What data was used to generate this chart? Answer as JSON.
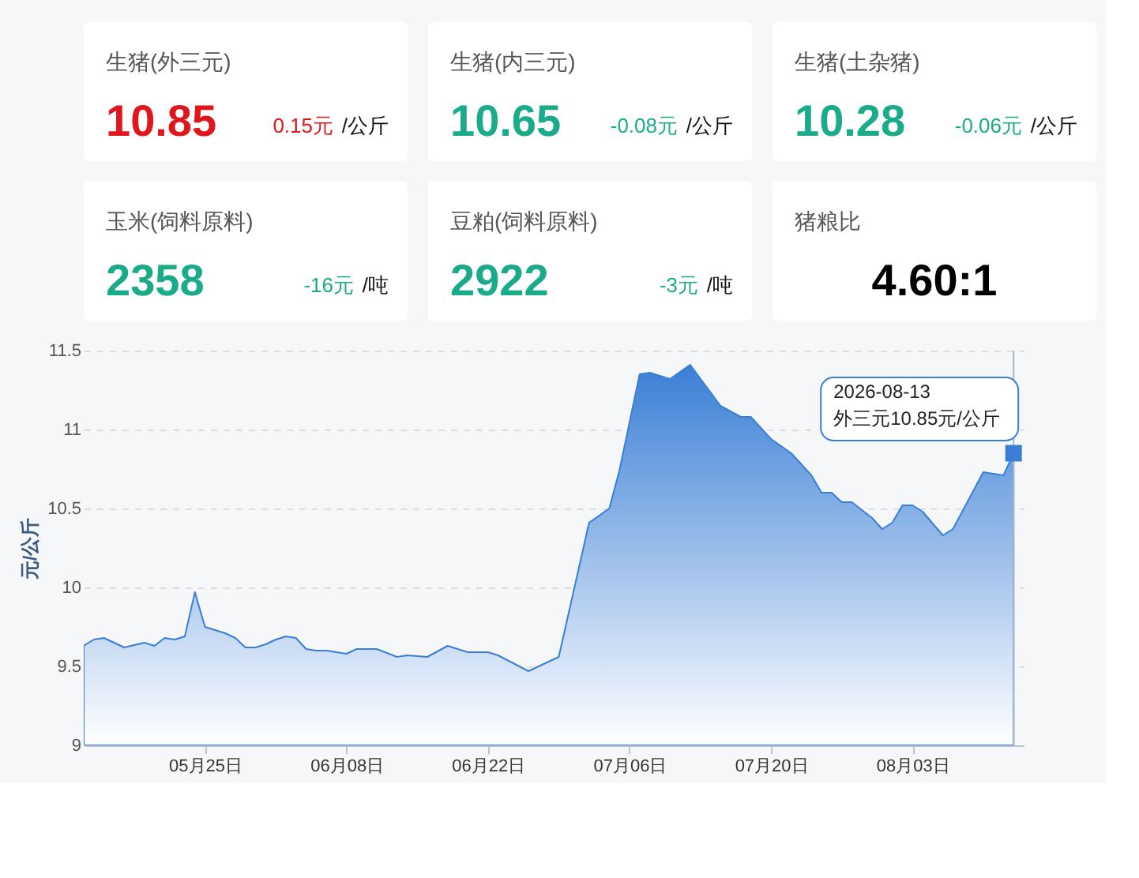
{
  "chart_data": [
    {
      "type": "other",
      "title": "生猪(外三元)",
      "annotations": [
        "10.85",
        "0.15元",
        "/公斤"
      ],
      "color": "#e0161c"
    },
    {
      "type": "other",
      "title": "生猪(内三元)",
      "annotations": [
        "10.65",
        "-0.08元",
        "/公斤"
      ],
      "color": "#1aab8a"
    },
    {
      "type": "other",
      "title": "生猪(土杂猪)",
      "annotations": [
        "10.28",
        "-0.06元",
        "/公斤"
      ],
      "color": "#1aab8a"
    },
    {
      "type": "other",
      "title": "玉米(饲料原料)",
      "annotations": [
        "2358",
        "-16元",
        "/吨"
      ],
      "color": "#1aab8a"
    },
    {
      "type": "other",
      "title": "豆粕(饲料原料)",
      "annotations": [
        "2922",
        "-3元",
        "/吨"
      ],
      "color": "#1aab8a"
    },
    {
      "type": "other",
      "title": "猪粮比",
      "annotations": [
        "4.60:1"
      ],
      "color": "#000000"
    },
    {
      "type": "area",
      "ylabel": "元/公斤",
      "x": [
        "2026-05-13",
        "2026-05-14",
        "2026-05-15",
        "2026-05-17",
        "2026-05-19",
        "2026-05-20",
        "2026-05-21",
        "2026-05-22",
        "2026-05-23",
        "2026-05-24",
        "2026-05-25",
        "2026-05-27",
        "2026-05-28",
        "2026-05-29",
        "2026-05-30",
        "2026-05-31",
        "2026-06-01",
        "2026-06-02",
        "2026-06-03",
        "2026-06-04",
        "2026-06-05",
        "2026-06-06",
        "2026-06-08",
        "2026-06-09",
        "2026-06-11",
        "2026-06-13",
        "2026-06-14",
        "2026-06-16",
        "2026-06-18",
        "2026-06-19",
        "2026-06-20",
        "2026-06-22",
        "2026-06-23",
        "2026-06-26",
        "2026-06-29",
        "2026-07-02",
        "2026-07-04",
        "2026-07-05",
        "2026-07-07",
        "2026-07-08",
        "2026-07-10",
        "2026-07-12",
        "2026-07-15",
        "2026-07-17",
        "2026-07-18",
        "2026-07-20",
        "2026-07-22",
        "2026-07-24",
        "2026-07-25",
        "2026-07-26",
        "2026-07-27",
        "2026-07-28",
        "2026-07-30",
        "2026-07-31",
        "2026-08-01",
        "2026-08-02",
        "2026-08-03",
        "2026-08-04",
        "2026-08-06",
        "2026-08-07",
        "2026-08-09",
        "2026-08-10",
        "2026-08-12",
        "2026-08-13"
      ],
      "series": [
        {
          "color": "#3a7fd5",
          "values": [
            9.63,
            9.67,
            9.68,
            9.62,
            9.65,
            9.63,
            9.68,
            9.67,
            9.69,
            9.97,
            9.75,
            9.71,
            9.68,
            9.62,
            9.62,
            9.64,
            9.67,
            9.69,
            9.68,
            9.61,
            9.6,
            9.6,
            9.58,
            9.61,
            9.61,
            9.56,
            9.57,
            9.56,
            9.63,
            9.61,
            9.59,
            9.59,
            9.57,
            9.47,
            9.56,
            10.41,
            10.5,
            10.74,
            11.35,
            11.36,
            11.32,
            11.41,
            11.15,
            11.08,
            11.08,
            10.94,
            10.85,
            10.71,
            10.6,
            10.6,
            10.54,
            10.54,
            10.44,
            10.37,
            10.41,
            10.52,
            10.52,
            10.48,
            10.33,
            10.37,
            10.61,
            10.73,
            10.71,
            10.85
          ]
        }
      ],
      "xlim": [
        "2026-05-13",
        "2026-08-14"
      ],
      "xticks": [
        {
          "value": "2026-05-25",
          "label": "05月25日"
        },
        {
          "value": "2026-06-08",
          "label": "06月08日"
        },
        {
          "value": "2026-06-22",
          "label": "06月22日"
        },
        {
          "value": "2026-07-06",
          "label": "07月06日"
        },
        {
          "value": "2026-07-20",
          "label": "07月20日"
        },
        {
          "value": "2026-08-03",
          "label": "08月03日"
        }
      ],
      "ref_lines": [
        {
          "axis": "x",
          "value": "2026-08-13",
          "color": "#aab8cc"
        }
      ],
      "ylim": [
        9,
        11.5
      ],
      "yticks": [
        9,
        9.5,
        10,
        10.5,
        11,
        11.5
      ],
      "grid": "y",
      "annotations": [
        {
          "text": "2026-08-13\n外三元10.85元/公斤",
          "x": "2026-08-13",
          "y": 10.85
        }
      ]
    }
  ]
}
